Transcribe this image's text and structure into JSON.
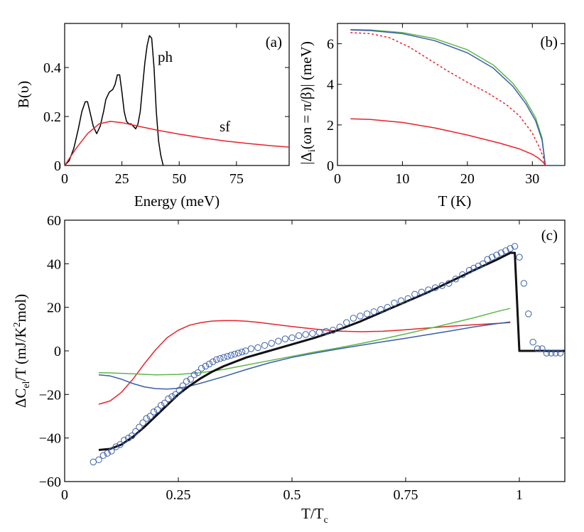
{
  "figure_title": "",
  "chart_data": [
    {
      "id": "a",
      "type": "line",
      "panel_label": "(a)",
      "xlabel": "Energy (meV)",
      "ylabel": "B(υ)",
      "xlim": [
        0,
        98
      ],
      "ylim": [
        0,
        0.58
      ],
      "xticks": [
        0,
        25,
        50,
        75
      ],
      "xtick_labels": [
        "0",
        "25",
        "50",
        "75"
      ],
      "yticks": [
        0,
        0.2,
        0.4
      ],
      "ytick_labels": [
        "0",
        "0.2",
        "0.4"
      ],
      "annotations": [
        {
          "text": "ph",
          "x": 41,
          "y": 0.52
        },
        {
          "text": "sf",
          "x": 69,
          "y": 0.17
        }
      ],
      "series": [
        {
          "name": "ph",
          "color": "#000000",
          "x": [
            0,
            2,
            4,
            6,
            7.5,
            9,
            10,
            11,
            12.5,
            14,
            15.5,
            17,
            18,
            19.5,
            21,
            22,
            23,
            24,
            25,
            26,
            27,
            28,
            29,
            30,
            31,
            32,
            33,
            34,
            35,
            36,
            37,
            38,
            39,
            40,
            41,
            42,
            43
          ],
          "y": [
            0,
            0.02,
            0.07,
            0.15,
            0.22,
            0.26,
            0.26,
            0.22,
            0.16,
            0.13,
            0.16,
            0.22,
            0.27,
            0.3,
            0.31,
            0.33,
            0.37,
            0.37,
            0.3,
            0.22,
            0.18,
            0.17,
            0.17,
            0.16,
            0.15,
            0.17,
            0.22,
            0.32,
            0.42,
            0.49,
            0.53,
            0.52,
            0.4,
            0.22,
            0.1,
            0.04,
            0
          ]
        },
        {
          "name": "sf",
          "color": "#e8222a",
          "x": [
            0,
            5,
            10,
            15,
            20,
            25,
            30,
            35,
            40,
            50,
            60,
            70,
            80,
            90,
            98
          ],
          "y": [
            0,
            0.07,
            0.13,
            0.17,
            0.18,
            0.175,
            0.165,
            0.155,
            0.145,
            0.128,
            0.113,
            0.1,
            0.09,
            0.081,
            0.075
          ]
        }
      ]
    },
    {
      "id": "b",
      "type": "line",
      "panel_label": "(b)",
      "xlabel": "T (K)",
      "ylabel": "|Δ_i(ωn = π/β)| (meV)",
      "ylabel_parts": {
        "pre": "|Δ",
        "sub": "i",
        "post": "(ωn = π/β)| (meV)"
      },
      "xlim": [
        0,
        35
      ],
      "ylim": [
        0,
        7
      ],
      "xticks": [
        0,
        10,
        20,
        30
      ],
      "xtick_labels": [
        "0",
        "10",
        "20",
        "30"
      ],
      "yticks": [
        0,
        2,
        4,
        6
      ],
      "ytick_labels": [
        "0",
        "2",
        "4",
        "6"
      ],
      "series": [
        {
          "name": "green",
          "color": "#5cb848",
          "dash": "",
          "x": [
            2,
            5,
            10,
            15,
            20,
            24,
            27,
            29,
            30.5,
            31.5,
            32,
            35
          ],
          "y": [
            6.7,
            6.68,
            6.55,
            6.25,
            5.7,
            4.95,
            4.05,
            3.2,
            2.35,
            1.35,
            0,
            0
          ]
        },
        {
          "name": "blue",
          "color": "#3b5ea8",
          "dash": "",
          "x": [
            2,
            5,
            10,
            15,
            20,
            24,
            27,
            29,
            30.5,
            31.5,
            32,
            35
          ],
          "y": [
            6.68,
            6.65,
            6.5,
            6.15,
            5.55,
            4.8,
            3.9,
            3.05,
            2.2,
            1.25,
            0,
            0
          ]
        },
        {
          "name": "red-dashed",
          "color": "#e8222a",
          "dash": "3,3",
          "x": [
            2,
            5,
            8,
            11,
            14,
            17,
            20,
            23,
            26,
            28,
            30,
            31,
            31.7,
            32
          ],
          "y": [
            6.55,
            6.5,
            6.3,
            5.85,
            5.25,
            4.65,
            4.1,
            3.6,
            3.0,
            2.45,
            1.6,
            0.95,
            0.4,
            0
          ]
        },
        {
          "name": "red-solid",
          "color": "#e8222a",
          "dash": "",
          "x": [
            2,
            5,
            10,
            15,
            20,
            25,
            28,
            30,
            31,
            31.7,
            32
          ],
          "y": [
            2.3,
            2.27,
            2.12,
            1.85,
            1.5,
            1.1,
            0.82,
            0.55,
            0.35,
            0.15,
            0
          ]
        }
      ]
    },
    {
      "id": "c",
      "type": "line",
      "panel_label": "(c)",
      "xlabel": "T/T_c",
      "xlabel_parts": {
        "pre": "T/T",
        "sub": "c"
      },
      "ylabel": "ΔC_el/T (mJ/K²mol)",
      "ylabel_parts": {
        "pre": "ΔC",
        "sub": "el",
        "mid": "/T (mJ/K",
        "sup": "2",
        "post": "mol)"
      },
      "xlim": [
        0,
        1.1
      ],
      "ylim": [
        -60,
        60
      ],
      "xticks": [
        0,
        0.25,
        0.5,
        0.75,
        1
      ],
      "xtick_labels": [
        "0",
        "0.25",
        "0.5",
        "0.75",
        "1"
      ],
      "yticks": [
        -60,
        -40,
        -20,
        0,
        20,
        40,
        60
      ],
      "ytick_labels": [
        "−60",
        "−40",
        "−20",
        "0",
        "20",
        "40",
        "60"
      ],
      "series": [
        {
          "name": "red",
          "color": "#e8222a",
          "width": 1.5,
          "x": [
            0.075,
            0.1,
            0.125,
            0.15,
            0.175,
            0.2,
            0.225,
            0.25,
            0.275,
            0.3,
            0.325,
            0.35,
            0.375,
            0.4,
            0.425,
            0.45,
            0.5,
            0.55,
            0.6,
            0.65,
            0.7,
            0.75,
            0.8,
            0.85,
            0.9,
            0.95,
            0.98
          ],
          "y": [
            -24.5,
            -23,
            -19,
            -13,
            -6,
            0.5,
            6,
            9.5,
            11.8,
            13,
            13.7,
            13.9,
            13.9,
            13.6,
            13.1,
            12.5,
            11.2,
            10,
            9.1,
            8.8,
            9,
            9.7,
            10.5,
            11.3,
            12,
            12.6,
            13
          ]
        },
        {
          "name": "green",
          "color": "#5cb848",
          "width": 1.5,
          "x": [
            0.075,
            0.1,
            0.15,
            0.2,
            0.25,
            0.3,
            0.35,
            0.4,
            0.45,
            0.5,
            0.55,
            0.6,
            0.65,
            0.7,
            0.75,
            0.8,
            0.85,
            0.9,
            0.95,
            0.98
          ],
          "y": [
            -10,
            -10.1,
            -10.5,
            -11,
            -10.8,
            -10,
            -8.5,
            -6.5,
            -4.5,
            -2.5,
            -0.5,
            1.3,
            3.3,
            5.5,
            7.8,
            10.2,
            12.7,
            15.2,
            18,
            19.5
          ]
        },
        {
          "name": "blue",
          "color": "#3b5ea8",
          "width": 1.5,
          "x": [
            0.075,
            0.1,
            0.125,
            0.15,
            0.175,
            0.2,
            0.225,
            0.25,
            0.275,
            0.3,
            0.35,
            0.4,
            0.45,
            0.5,
            0.55,
            0.6,
            0.65,
            0.7,
            0.75,
            0.8,
            0.85,
            0.9,
            0.95,
            0.98
          ],
          "y": [
            -11,
            -11.5,
            -13,
            -15,
            -16.5,
            -17.3,
            -17.5,
            -17.2,
            -16.2,
            -14.8,
            -11.8,
            -8.5,
            -5.5,
            -3,
            -1,
            0.8,
            2.5,
            4.2,
            5.8,
            7.5,
            9.2,
            11,
            12.5,
            13.3
          ]
        },
        {
          "name": "fit",
          "color": "#111111",
          "width": 3,
          "x": [
            0.075,
            0.1,
            0.125,
            0.15,
            0.175,
            0.2,
            0.225,
            0.25,
            0.275,
            0.3,
            0.325,
            0.35,
            0.375,
            0.4,
            0.45,
            0.5,
            0.55,
            0.6,
            0.65,
            0.7,
            0.75,
            0.8,
            0.85,
            0.9,
            0.95,
            0.98,
            0.99,
            1.0,
            1.1
          ],
          "y": [
            -45.5,
            -45,
            -43,
            -39.5,
            -35,
            -30,
            -25,
            -20,
            -16,
            -12.5,
            -9.5,
            -7,
            -5,
            -3,
            0,
            3,
            6,
            9.5,
            13.5,
            18,
            22.5,
            27,
            32,
            37,
            41.8,
            45,
            45,
            0,
            0
          ]
        }
      ],
      "markers": {
        "name": "experiment",
        "color": "#3b5ea8",
        "x": [
          0.063,
          0.075,
          0.085,
          0.094,
          0.103,
          0.113,
          0.122,
          0.131,
          0.14,
          0.148,
          0.156,
          0.164,
          0.172,
          0.18,
          0.188,
          0.196,
          0.204,
          0.212,
          0.22,
          0.228,
          0.236,
          0.244,
          0.252,
          0.26,
          0.268,
          0.277,
          0.285,
          0.293,
          0.301,
          0.31,
          0.318,
          0.326,
          0.334,
          0.342,
          0.35,
          0.358,
          0.366,
          0.374,
          0.382,
          0.39,
          0.398,
          0.41,
          0.425,
          0.44,
          0.455,
          0.47,
          0.485,
          0.5,
          0.515,
          0.53,
          0.545,
          0.56,
          0.575,
          0.59,
          0.605,
          0.62,
          0.635,
          0.65,
          0.665,
          0.68,
          0.695,
          0.71,
          0.725,
          0.74,
          0.755,
          0.77,
          0.785,
          0.8,
          0.815,
          0.83,
          0.845,
          0.86,
          0.875,
          0.89,
          0.9,
          0.91,
          0.92,
          0.93,
          0.94,
          0.95,
          0.96,
          0.97,
          0.98,
          0.99,
          1.0,
          1.01,
          1.02,
          1.03,
          1.04,
          1.05,
          1.06,
          1.07,
          1.08,
          1.09
        ],
        "y": [
          -51,
          -50,
          -48,
          -47,
          -46,
          -44,
          -43,
          -41,
          -40,
          -39,
          -37,
          -35,
          -33,
          -31,
          -30,
          -28,
          -27,
          -25,
          -24,
          -22,
          -21,
          -20,
          -18,
          -16,
          -14,
          -13,
          -11,
          -10,
          -8,
          -7,
          -6,
          -5,
          -4,
          -3.5,
          -3,
          -2.5,
          -2,
          -1.5,
          -1,
          -0.5,
          0,
          1,
          1.5,
          2.5,
          3.5,
          4.5,
          5.5,
          6,
          7,
          7.5,
          8,
          8.5,
          9,
          9.5,
          11,
          13,
          15,
          16,
          17,
          18,
          19,
          20,
          22,
          23,
          24,
          26,
          27,
          28,
          29,
          30,
          31,
          33,
          35,
          37,
          38,
          39,
          40,
          42,
          43,
          44,
          45,
          46,
          47,
          48,
          43,
          31,
          17,
          4,
          1,
          1,
          -1,
          -1,
          -1,
          -1
        ]
      }
    }
  ]
}
